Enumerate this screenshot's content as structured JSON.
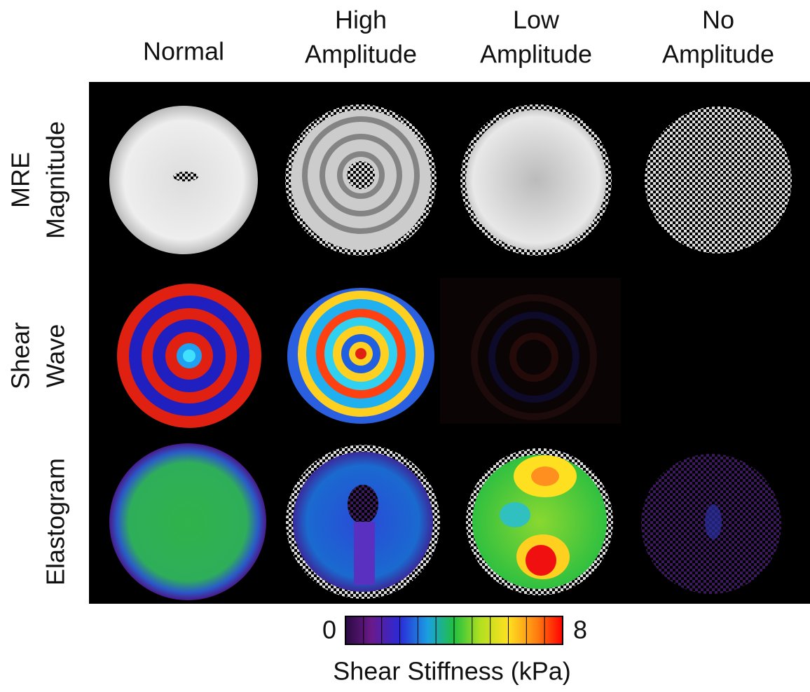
{
  "columns": [
    [
      "Normal"
    ],
    [
      "High",
      "Amplitude"
    ],
    [
      "Low",
      "Amplitude"
    ],
    [
      "No",
      "Amplitude"
    ]
  ],
  "rows": [
    [
      "MRE",
      "Magnitude"
    ],
    [
      "Shear",
      "Wave"
    ],
    [
      "Elastogram"
    ]
  ],
  "colorbar": {
    "min": 0,
    "max": 8,
    "label": "Shear Stiffness (kPa)"
  }
}
